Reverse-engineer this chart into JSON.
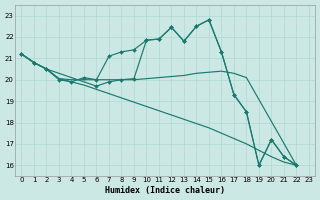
{
  "xlabel": "Humidex (Indice chaleur)",
  "bg_color": "#cce8e4",
  "grid_color": "#b0d8d4",
  "line_color": "#1a7a6e",
  "xlim": [
    -0.5,
    23.5
  ],
  "ylim": [
    15.5,
    23.5
  ],
  "yticks": [
    16,
    17,
    18,
    19,
    20,
    21,
    22,
    23
  ],
  "xticks": [
    0,
    1,
    2,
    3,
    4,
    5,
    6,
    7,
    8,
    9,
    10,
    11,
    12,
    13,
    14,
    15,
    16,
    17,
    18,
    19,
    20,
    21,
    22,
    23
  ],
  "line1_x": [
    0,
    1,
    2,
    3,
    4,
    5,
    6,
    7,
    8,
    9,
    10,
    11,
    12,
    13,
    14,
    15,
    16,
    17,
    18,
    19,
    20,
    21,
    22
  ],
  "line1_y": [
    21.2,
    20.8,
    20.5,
    20.0,
    19.9,
    20.1,
    20.0,
    21.1,
    21.3,
    21.4,
    21.85,
    21.9,
    22.45,
    21.8,
    22.5,
    22.8,
    21.3,
    19.3,
    18.5,
    16.0,
    17.2,
    16.4,
    16.0
  ],
  "line2_x": [
    0,
    1,
    2,
    3,
    4,
    5,
    6,
    7,
    8,
    9,
    10,
    11,
    12,
    13,
    14,
    15,
    16,
    17,
    18,
    22
  ],
  "line2_y": [
    21.2,
    20.8,
    20.5,
    20.05,
    20.0,
    20.0,
    20.0,
    20.0,
    20.0,
    20.0,
    20.05,
    20.1,
    20.15,
    20.2,
    20.3,
    20.35,
    20.4,
    20.3,
    20.1,
    16.0
  ],
  "line3_x": [
    0,
    1,
    2,
    3,
    4,
    5,
    6,
    7,
    8,
    9,
    10,
    11,
    12,
    13,
    14,
    15,
    16,
    17,
    18,
    19,
    20,
    21,
    22
  ],
  "line3_y": [
    21.2,
    20.8,
    20.5,
    20.05,
    19.9,
    19.75,
    19.55,
    19.35,
    19.15,
    18.95,
    18.75,
    18.55,
    18.35,
    18.15,
    17.95,
    17.75,
    17.5,
    17.25,
    17.0,
    16.7,
    16.4,
    16.15,
    16.0
  ],
  "line4_x": [
    0,
    1,
    2,
    6,
    7,
    8,
    9,
    10,
    11,
    12,
    13,
    14,
    15,
    16,
    17,
    18,
    19,
    20,
    21,
    22
  ],
  "line4_y": [
    21.2,
    20.8,
    20.5,
    19.7,
    19.9,
    20.0,
    20.05,
    21.85,
    21.9,
    22.45,
    21.8,
    22.5,
    22.8,
    21.3,
    19.3,
    18.5,
    16.0,
    17.2,
    16.4,
    16.0
  ]
}
